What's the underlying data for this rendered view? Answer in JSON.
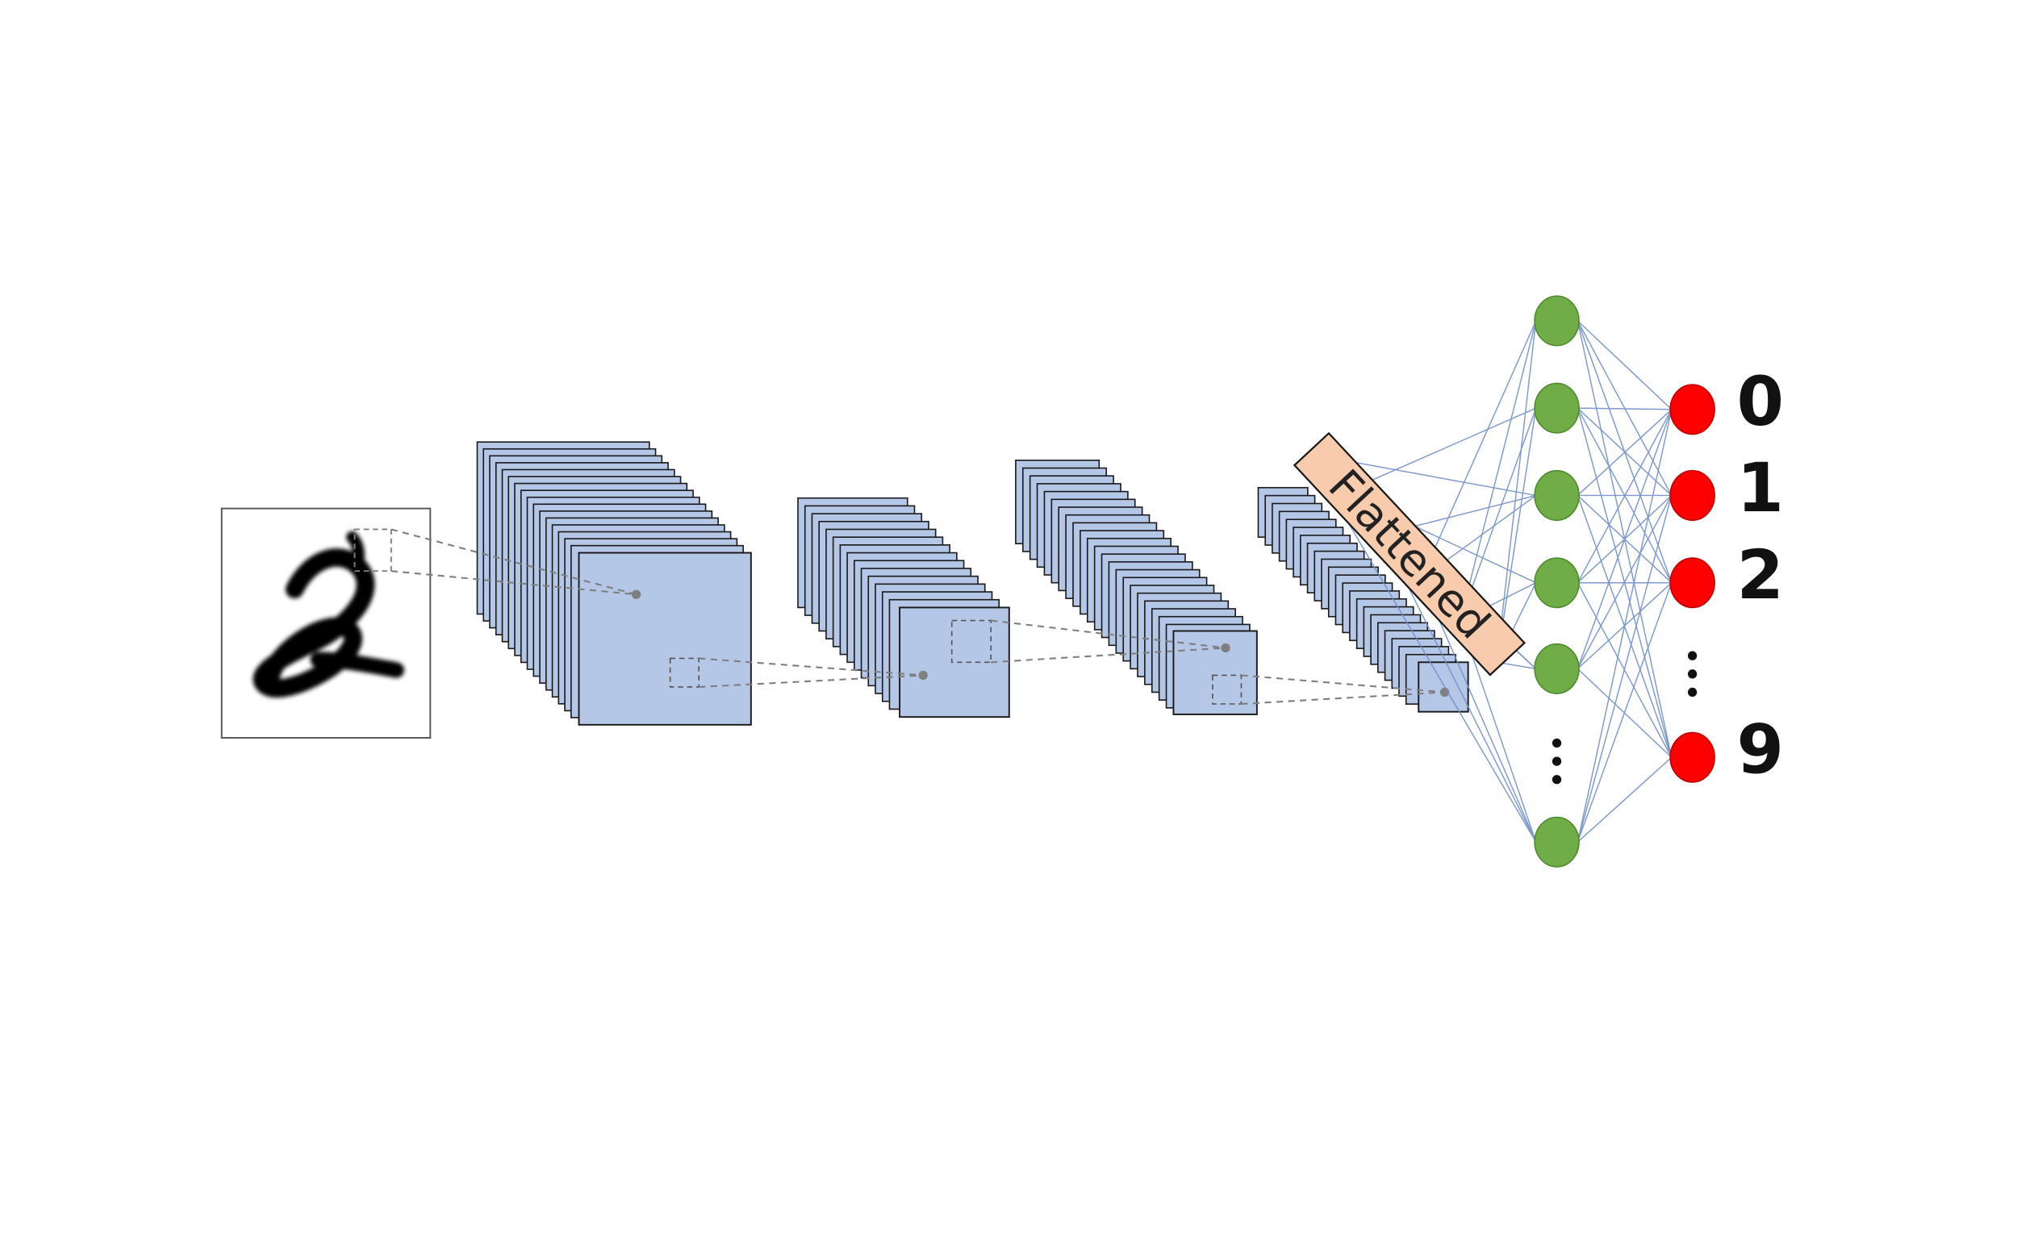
{
  "flatten_label": "Flattened",
  "output_labels": [
    "0",
    "1",
    "2",
    "9"
  ],
  "colors": {
    "feature_map_fill": "#b4c7e7",
    "feature_map_stroke": "#1a1a1a",
    "flatten_fill": "#f8cbad",
    "hidden_neuron": "#70ad47",
    "hidden_neuron_stroke": "#4e8a2f",
    "output_neuron": "#ff0000",
    "output_neuron_stroke": "#c00000",
    "connection": "#6f8fc8",
    "receptive_field": "#7f7f7f",
    "digit_ink": "#000000"
  },
  "icons": {
    "hidden_ellipsis": "vertical-ellipsis",
    "output_ellipsis": "vertical-ellipsis"
  }
}
